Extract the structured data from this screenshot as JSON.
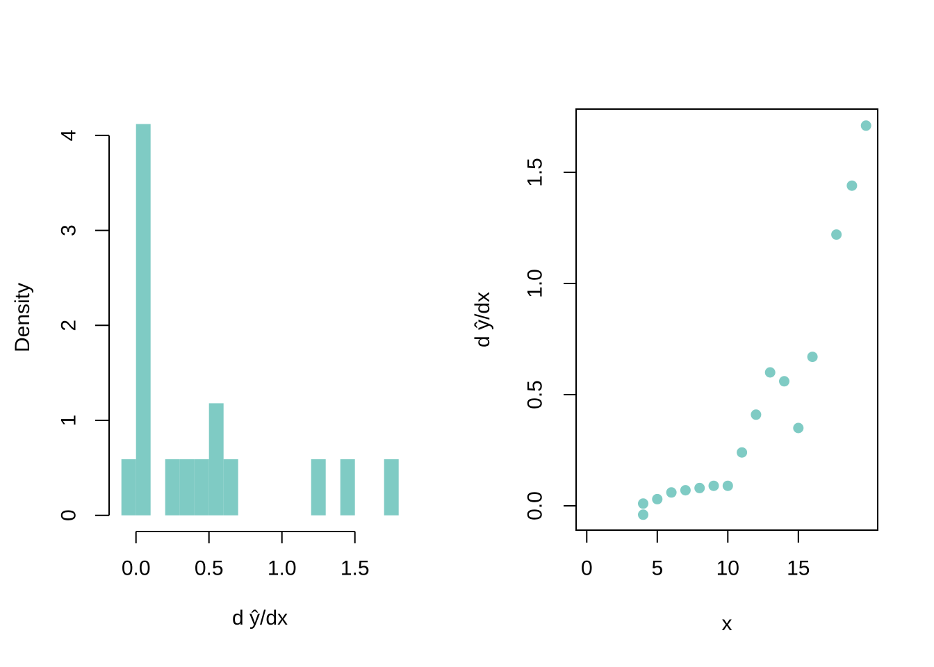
{
  "figure": {
    "background_color": "#ffffff",
    "accent_color": "#7FCBC4",
    "axis_color": "#000000",
    "n_observations": 17
  },
  "chart_data": [
    {
      "type": "bar",
      "subtype": "histogram",
      "title": "",
      "xlabel": "d ŷ/dx",
      "ylabel": "Density",
      "grid": false,
      "legend": "none",
      "bin_width": 0.1,
      "xlim": [
        -0.18,
        1.88
      ],
      "ylim": [
        0,
        4.28
      ],
      "bar_color": "#7FCBC4",
      "bars": [
        {
          "x0": -0.1,
          "x1": 0.0,
          "count": 1,
          "density": 0.59
        },
        {
          "x0": 0.0,
          "x1": 0.1,
          "count": 7,
          "density": 4.12
        },
        {
          "x0": 0.2,
          "x1": 0.3,
          "count": 1,
          "density": 0.59
        },
        {
          "x0": 0.3,
          "x1": 0.4,
          "count": 1,
          "density": 0.59
        },
        {
          "x0": 0.4,
          "x1": 0.5,
          "count": 1,
          "density": 0.59
        },
        {
          "x0": 0.5,
          "x1": 0.6,
          "count": 2,
          "density": 1.18
        },
        {
          "x0": 0.6,
          "x1": 0.7,
          "count": 1,
          "density": 0.59
        },
        {
          "x0": 1.2,
          "x1": 1.3,
          "count": 1,
          "density": 0.59
        },
        {
          "x0": 1.4,
          "x1": 1.5,
          "count": 1,
          "density": 0.59
        },
        {
          "x0": 1.7,
          "x1": 1.8,
          "count": 1,
          "density": 0.59
        }
      ],
      "x_ticks": [
        {
          "value": 0.0,
          "label": "0.0"
        },
        {
          "value": 0.5,
          "label": "0.5"
        },
        {
          "value": 1.0,
          "label": "1.0"
        },
        {
          "value": 1.5,
          "label": "1.5"
        }
      ],
      "y_ticks": [
        {
          "value": 0,
          "label": "0"
        },
        {
          "value": 1,
          "label": "1"
        },
        {
          "value": 2,
          "label": "2"
        },
        {
          "value": 3,
          "label": "3"
        },
        {
          "value": 4,
          "label": "4"
        }
      ]
    },
    {
      "type": "scatter",
      "title": "",
      "xlabel": "x",
      "ylabel": "d ŷ/dx",
      "grid": false,
      "legend": "none",
      "frame_box": true,
      "xlim": [
        -0.8,
        20.8
      ],
      "ylim": [
        -0.11,
        1.78
      ],
      "point_color": "#7FCBC4",
      "points": [
        {
          "x": 4,
          "y": 0.01
        },
        {
          "x": 4,
          "y": -0.04
        },
        {
          "x": 5,
          "y": 0.03
        },
        {
          "x": 6,
          "y": 0.06
        },
        {
          "x": 7,
          "y": 0.07
        },
        {
          "x": 8,
          "y": 0.08
        },
        {
          "x": 9,
          "y": 0.09
        },
        {
          "x": 10,
          "y": 0.09
        },
        {
          "x": 11,
          "y": 0.24
        },
        {
          "x": 12,
          "y": 0.41
        },
        {
          "x": 13,
          "y": 0.6
        },
        {
          "x": 14,
          "y": 0.56
        },
        {
          "x": 15,
          "y": 0.35
        },
        {
          "x": 16,
          "y": 0.67
        },
        {
          "x": 17.7,
          "y": 1.22
        },
        {
          "x": 18.8,
          "y": 1.44
        },
        {
          "x": 19.8,
          "y": 1.71
        }
      ],
      "x_ticks": [
        {
          "value": 0,
          "label": "0"
        },
        {
          "value": 5,
          "label": "5"
        },
        {
          "value": 10,
          "label": "10"
        },
        {
          "value": 15,
          "label": "15"
        }
      ],
      "y_ticks": [
        {
          "value": 0.0,
          "label": "0.0"
        },
        {
          "value": 0.5,
          "label": "0.5"
        },
        {
          "value": 1.0,
          "label": "1.0"
        },
        {
          "value": 1.5,
          "label": "1.5"
        }
      ]
    }
  ]
}
